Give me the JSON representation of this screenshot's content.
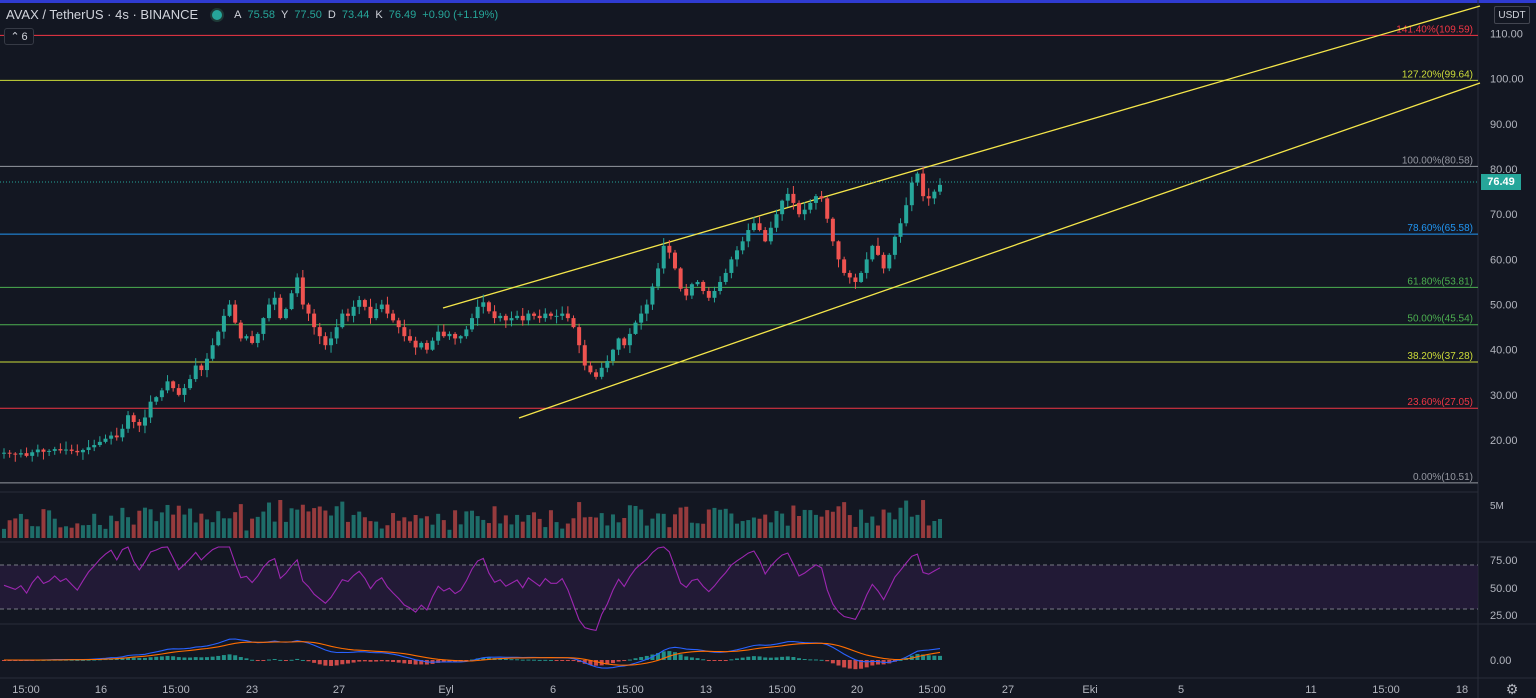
{
  "header": {
    "symbol": "AVAX / TetherUS · 4s · BINANCE",
    "o_label": "A",
    "o_value": "75.58",
    "h_label": "Y",
    "h_value": "77.50",
    "l_label": "D",
    "l_value": "73.44",
    "c_label": "K",
    "c_value": "76.49",
    "change": "+0.90 (+1.19%)",
    "collapse_count": "6"
  },
  "currency_label": "USDT",
  "current_price": "76.49",
  "volume_label": "5M",
  "colors": {
    "up": "#26a69a",
    "down": "#ef5350",
    "background": "#131722",
    "channel": "#f5e64a",
    "rsi": "#9c27b0",
    "macd": "#2962ff",
    "signal": "#ff6d00"
  },
  "icons": {
    "settings": "gear-icon",
    "collapse": "chevron-up-icon",
    "status": "market-open-dot"
  },
  "price_axis": [
    "110.00",
    "100.00",
    "90.00",
    "80.00",
    "70.00",
    "60.00",
    "50.00",
    "40.00",
    "30.00",
    "20.00"
  ],
  "rsi_axis": [
    "75.00",
    "50.00",
    "25.00"
  ],
  "macd_axis": [
    "0.00"
  ],
  "time_axis": [
    "15:00",
    "16",
    "15:00",
    "23",
    "27",
    "Eyl",
    "6",
    "15:00",
    "13",
    "15:00",
    "20",
    "15:00",
    "27",
    "Eki",
    "5",
    "11",
    "15:00",
    "18"
  ],
  "fib_levels": [
    {
      "label": "141.40%(109.59)",
      "price": 109.59,
      "color": "#f23645"
    },
    {
      "label": "127.20%(99.64)",
      "price": 99.64,
      "color": "#cddc39"
    },
    {
      "label": "100.00%(80.58)",
      "price": 80.58,
      "color": "#9598a1"
    },
    {
      "label": "78.60%(65.58)",
      "price": 65.58,
      "color": "#2196f3"
    },
    {
      "label": "61.80%(53.81)",
      "price": 53.81,
      "color": "#4caf50"
    },
    {
      "label": "50.00%(45.54)",
      "price": 45.54,
      "color": "#4caf50"
    },
    {
      "label": "38.20%(37.28)",
      "price": 37.28,
      "color": "#cddc39"
    },
    {
      "label": "23.60%(27.05)",
      "price": 27.05,
      "color": "#f23645"
    },
    {
      "label": "0.00%(10.51)",
      "price": 10.51,
      "color": "#9598a1"
    }
  ],
  "chart_data": {
    "type": "candlestick",
    "price_axis_ticks": [
      110,
      100,
      90,
      80,
      70,
      60,
      50,
      40,
      30,
      20
    ],
    "price_range": [
      8.5,
      113
    ],
    "closes": [
      17.2,
      17.0,
      16.8,
      17.1,
      16.5,
      17.3,
      17.9,
      17.4,
      17.6,
      18.0,
      17.7,
      17.9,
      17.6,
      17.3,
      17.8,
      18.4,
      18.9,
      19.6,
      20.3,
      21.0,
      20.6,
      22.5,
      25.5,
      24.0,
      23.2,
      25.0,
      28.5,
      29.5,
      31.0,
      33.0,
      31.5,
      30.0,
      31.5,
      33.5,
      36.5,
      35.5,
      38.0,
      41.0,
      44.0,
      47.5,
      50.0,
      46.0,
      42.5,
      43.0,
      41.5,
      43.5,
      47.0,
      50.0,
      51.5,
      47.0,
      49.0,
      52.5,
      56.0,
      50.0,
      48.0,
      45.0,
      43.0,
      41.0,
      42.5,
      45.0,
      48.0,
      47.5,
      49.5,
      51.0,
      49.5,
      47.0,
      49.0,
      50.0,
      48.0,
      46.5,
      45.0,
      43.0,
      42.0,
      40.5,
      41.5,
      40.0,
      42.0,
      44.0,
      43.0,
      43.5,
      42.5,
      43.0,
      44.5,
      47.0,
      49.5,
      50.5,
      48.5,
      47.0,
      47.5,
      46.5,
      47.0,
      47.5,
      46.5,
      48.0,
      47.5,
      47.0,
      48.0,
      47.5,
      47.5,
      48.0,
      47.0,
      45.0,
      41.0,
      36.5,
      35.0,
      34.0,
      36.0,
      37.5,
      40.0,
      42.5,
      41.0,
      43.5,
      46.0,
      48.0,
      50.0,
      54.0,
      58.0,
      63.0,
      61.5,
      58.0,
      53.5,
      52.0,
      54.5,
      55.0,
      53.0,
      51.5,
      53.0,
      55.0,
      57.0,
      60.0,
      62.0,
      64.0,
      66.5,
      68.0,
      66.5,
      64.0,
      67.0,
      70.0,
      73.0,
      74.5,
      72.5,
      70.0,
      71.0,
      72.5,
      74.0,
      73.5,
      69.0,
      64.0,
      60.0,
      57.0,
      56.0,
      55.0,
      57.0,
      60.0,
      63.0,
      61.0,
      58.0,
      61.0,
      65.0,
      68.0,
      72.0,
      77.0,
      79.0,
      74.0,
      73.5,
      75.0,
      76.5
    ],
    "volume_label": "5M",
    "indicators": [
      "Volume",
      "RSI",
      "MACD"
    ]
  }
}
